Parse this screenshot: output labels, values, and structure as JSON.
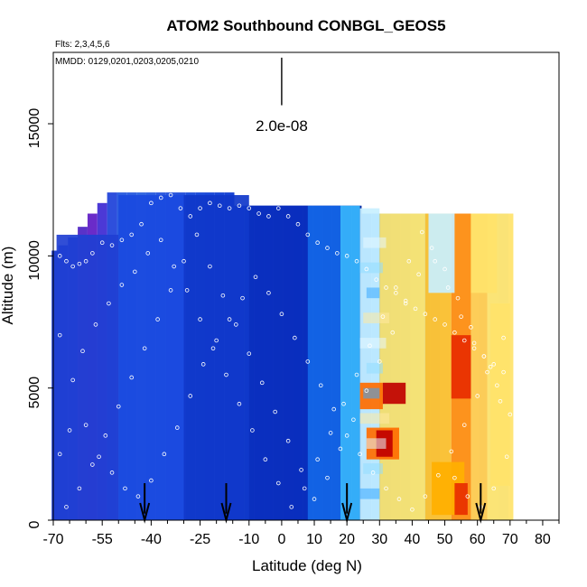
{
  "chart_data": {
    "type": "heatmap",
    "title": "ATOM2 Southbound CONBGL_GEOS5",
    "flights_text": "Flts: 2,3,4,5,6",
    "mmdd_text": "MMDD: 0129,0201,0203,0205,0210",
    "xlabel": "Latitude (deg N)",
    "ylabel": "Altitude (m)",
    "xlim": [
      -70,
      85
    ],
    "ylim": [
      0,
      17700
    ],
    "x_ticks": [
      -70,
      -55,
      -40,
      -25,
      -10,
      0,
      10,
      20,
      30,
      40,
      50,
      60,
      70,
      80
    ],
    "x_minor_ticks": [
      -65,
      -60,
      -50,
      -45,
      -35,
      -30,
      -20,
      -15,
      -5,
      5,
      15,
      25,
      35,
      45,
      55,
      65,
      75,
      85
    ],
    "y_ticks": [
      0,
      5000,
      10000,
      15000
    ],
    "scale_bar": {
      "label": "2.0e-08",
      "x": 0,
      "y_from": 15700,
      "y_to": 17500
    },
    "arrow_markers_lat": [
      -42,
      -17,
      20,
      61
    ],
    "color_scale": [
      "#0000c8",
      "#1f4fe6",
      "#3f7ff0",
      "#38b8ff",
      "#c8f0ff",
      "#ffffc0",
      "#ffe36a",
      "#ffbe28",
      "#ff8a0a",
      "#e82c00",
      "#c00000"
    ],
    "column_tops": [
      {
        "lat": -69,
        "top": 10200,
        "fill": "#1f3fd2"
      },
      {
        "lat": -67,
        "top": 10400,
        "fill": "#1f3fd2"
      },
      {
        "lat": -64,
        "top": 10700,
        "fill": "#2a44d5"
      },
      {
        "lat": -61,
        "top": 11100,
        "fill": "#5a32c8"
      },
      {
        "lat": -58,
        "top": 11600,
        "fill": "#6a2bc9"
      },
      {
        "lat": -55,
        "top": 12000,
        "fill": "#4c39d6"
      },
      {
        "lat": -52,
        "top": 12400,
        "fill": "#2e4fdc"
      },
      {
        "lat": -49,
        "top": 12400,
        "fill": "#2e5fe0"
      },
      {
        "lat": -46,
        "top": 12400,
        "fill": "#2e5fe0"
      },
      {
        "lat": -43,
        "top": 12400,
        "fill": "#3266e0"
      },
      {
        "lat": -40,
        "top": 12400,
        "fill": "#2d5ee0"
      },
      {
        "lat": -37,
        "top": 12400,
        "fill": "#2b59de"
      },
      {
        "lat": -34,
        "top": 12400,
        "fill": "#2855dd"
      },
      {
        "lat": -31,
        "top": 12400,
        "fill": "#2552dc"
      },
      {
        "lat": -28,
        "top": 12400,
        "fill": "#2150db"
      },
      {
        "lat": -25,
        "top": 12400,
        "fill": "#1d4cda"
      },
      {
        "lat": -22,
        "top": 12400,
        "fill": "#1b49d8"
      },
      {
        "lat": -19,
        "top": 12400,
        "fill": "#1946d6"
      },
      {
        "lat": -16,
        "top": 12400,
        "fill": "#1944d4"
      },
      {
        "lat": -13,
        "top": 11900,
        "fill": "#1a42d2"
      },
      {
        "lat": -10,
        "top": 11900,
        "fill": "#163ecc"
      },
      {
        "lat": -7,
        "top": 11900,
        "fill": "#133ac8"
      },
      {
        "lat": -4,
        "top": 11900,
        "fill": "#1136c4"
      },
      {
        "lat": -1,
        "top": 11900,
        "fill": "#0f31c0"
      },
      {
        "lat": 2,
        "top": 11900,
        "fill": "#0d2ebb"
      },
      {
        "lat": 5,
        "top": 11900,
        "fill": "#0b2bb7"
      },
      {
        "lat": 8,
        "top": 11900,
        "fill": "#0a28b3"
      },
      {
        "lat": 11,
        "top": 11900,
        "fill": "#0826ad"
      },
      {
        "lat": 14,
        "top": 11900,
        "fill": "#0723a7"
      },
      {
        "lat": 17,
        "top": 11900,
        "fill": "#0621a1"
      },
      {
        "lat": 20,
        "top": 11900,
        "fill": "#06239f"
      },
      {
        "lat": 23,
        "top": 11900,
        "fill": "#0727a1"
      },
      {
        "lat": 26,
        "top": 11600,
        "fill": "#1f76f0"
      },
      {
        "lat": 29,
        "top": 11600,
        "fill": "#2a8df6"
      },
      {
        "lat": 32,
        "top": 11600,
        "fill": "#38a2f8"
      },
      {
        "lat": 35,
        "top": 11600,
        "fill": "#4ab3fb"
      },
      {
        "lat": 38,
        "top": 11600,
        "fill": "#5cc3fd"
      },
      {
        "lat": 41,
        "top": 11600,
        "fill": "#76d1ff"
      },
      {
        "lat": 44,
        "top": 11600,
        "fill": "#90dcff"
      },
      {
        "lat": 47,
        "top": 11600,
        "fill": "#a8e4ff"
      },
      {
        "lat": 50,
        "top": 11600,
        "fill": "#c1ecff"
      },
      {
        "lat": 53,
        "top": 11600,
        "fill": "#d5f2ff"
      },
      {
        "lat": 56,
        "top": 11600,
        "fill": "#e4f7ff"
      },
      {
        "lat": 59,
        "top": 11600,
        "fill": "#e1f5ff"
      },
      {
        "lat": 62,
        "top": 11600,
        "fill": "#d6f1ff"
      },
      {
        "lat": 65,
        "top": 11600,
        "fill": "#c7ebff"
      },
      {
        "lat": 68,
        "top": 11600,
        "fill": "#b8e5ff"
      }
    ],
    "heat_bands": [
      {
        "x0": -69,
        "x1": -50,
        "y0": 0,
        "y1": 10800,
        "color": "#1f3fd2"
      },
      {
        "x0": -50,
        "x1": -30,
        "y0": 0,
        "y1": 12300,
        "color": "#1a4adf"
      },
      {
        "x0": -30,
        "x1": -10,
        "y0": 0,
        "y1": 12300,
        "color": "#0f37ca"
      },
      {
        "x0": -10,
        "x1": 8,
        "y0": 0,
        "y1": 11900,
        "color": "#0a2fbe"
      },
      {
        "x0": 8,
        "x1": 18,
        "y0": 0,
        "y1": 11900,
        "color": "#1367e8"
      },
      {
        "x0": 18,
        "x1": 24,
        "y0": 0,
        "y1": 11900,
        "color": "#38b8ff"
      },
      {
        "x0": 24,
        "x1": 30,
        "y0": 0,
        "y1": 11800,
        "color": "#c8f0ff"
      },
      {
        "x0": 30,
        "x1": 44,
        "y0": 0,
        "y1": 11600,
        "color": "#ffe36a"
      },
      {
        "x0": 44,
        "x1": 52,
        "y0": 0,
        "y1": 11600,
        "color": "#ffbe28"
      },
      {
        "x0": 52,
        "x1": 58,
        "y0": 0,
        "y1": 11600,
        "color": "#ff8a0a"
      },
      {
        "x0": 58,
        "x1": 63,
        "y0": 0,
        "y1": 11600,
        "color": "#ffc94a"
      },
      {
        "x0": 63,
        "x1": 71,
        "y0": 0,
        "y1": 11600,
        "color": "#ffe36a"
      },
      {
        "x0": 24,
        "x1": 31,
        "y0": 4200,
        "y1": 5200,
        "color": "#ff6d00"
      },
      {
        "x0": 31,
        "x1": 38,
        "y0": 4400,
        "y1": 5200,
        "color": "#c00000"
      },
      {
        "x0": 26,
        "x1": 36,
        "y0": 2300,
        "y1": 3500,
        "color": "#ff6d00"
      },
      {
        "x0": 29,
        "x1": 34,
        "y0": 2400,
        "y1": 3400,
        "color": "#c00000"
      },
      {
        "x0": 52,
        "x1": 58,
        "y0": 4600,
        "y1": 7000,
        "color": "#e82c00"
      },
      {
        "x0": 46,
        "x1": 56,
        "y0": 200,
        "y1": 2200,
        "color": "#ffb000"
      },
      {
        "x0": 53,
        "x1": 57,
        "y0": 200,
        "y1": 1400,
        "color": "#e82c00"
      },
      {
        "x0": 64,
        "x1": 70,
        "y0": 1300,
        "y1": 8200,
        "color": "#ffe36a"
      },
      {
        "x0": 58,
        "x1": 66,
        "y0": 8600,
        "y1": 11600,
        "color": "#ffe36a"
      },
      {
        "x0": 45,
        "x1": 53,
        "y0": 8600,
        "y1": 11600,
        "color": "#c8f0ff"
      }
    ],
    "obs_points": [
      {
        "x": -68,
        "y": 10000
      },
      {
        "x": -66,
        "y": 9800
      },
      {
        "x": -64,
        "y": 9600
      },
      {
        "x": -62,
        "y": 9700
      },
      {
        "x": -60,
        "y": 9800
      },
      {
        "x": -58,
        "y": 10100
      },
      {
        "x": -55,
        "y": 10500
      },
      {
        "x": -52,
        "y": 10400
      },
      {
        "x": -49,
        "y": 10600
      },
      {
        "x": -46,
        "y": 10800
      },
      {
        "x": -43,
        "y": 11200
      },
      {
        "x": -40,
        "y": 12000
      },
      {
        "x": -37,
        "y": 12200
      },
      {
        "x": -34,
        "y": 12300
      },
      {
        "x": -31,
        "y": 11800
      },
      {
        "x": -28,
        "y": 11500
      },
      {
        "x": -25,
        "y": 11800
      },
      {
        "x": -22,
        "y": 12000
      },
      {
        "x": -19,
        "y": 11900
      },
      {
        "x": -16,
        "y": 11800
      },
      {
        "x": -13,
        "y": 11900
      },
      {
        "x": -10,
        "y": 11800
      },
      {
        "x": -7,
        "y": 11600
      },
      {
        "x": -4,
        "y": 11500
      },
      {
        "x": -1,
        "y": 11800
      },
      {
        "x": 2,
        "y": 11500
      },
      {
        "x": 5,
        "y": 11200
      },
      {
        "x": 8,
        "y": 10800
      },
      {
        "x": 11,
        "y": 10500
      },
      {
        "x": 14,
        "y": 10300
      },
      {
        "x": 17,
        "y": 10100
      },
      {
        "x": 20,
        "y": 10000
      },
      {
        "x": 23,
        "y": 9800
      },
      {
        "x": 26,
        "y": 9500
      },
      {
        "x": 29,
        "y": 9100
      },
      {
        "x": 32,
        "y": 8800
      },
      {
        "x": 35,
        "y": 8600
      },
      {
        "x": 38,
        "y": 8300
      },
      {
        "x": 41,
        "y": 8000
      },
      {
        "x": 44,
        "y": 7800
      },
      {
        "x": 47,
        "y": 7600
      },
      {
        "x": 50,
        "y": 7400
      },
      {
        "x": 53,
        "y": 7100
      },
      {
        "x": 56,
        "y": 6800
      },
      {
        "x": 59,
        "y": 6500
      },
      {
        "x": 62,
        "y": 6200
      },
      {
        "x": 65,
        "y": 5900
      },
      {
        "x": 68,
        "y": 5600
      },
      {
        "x": -68,
        "y": 7000
      },
      {
        "x": -64,
        "y": 5300
      },
      {
        "x": -60,
        "y": 3600
      },
      {
        "x": -56,
        "y": 2400
      },
      {
        "x": -52,
        "y": 1800
      },
      {
        "x": -48,
        "y": 1200
      },
      {
        "x": -44,
        "y": 900
      },
      {
        "x": -40,
        "y": 1500
      },
      {
        "x": -36,
        "y": 2500
      },
      {
        "x": -32,
        "y": 3500
      },
      {
        "x": -28,
        "y": 4700
      },
      {
        "x": -24,
        "y": 5900
      },
      {
        "x": -20,
        "y": 6800
      },
      {
        "x": -16,
        "y": 7600
      },
      {
        "x": -12,
        "y": 8400
      },
      {
        "x": -8,
        "y": 9200
      },
      {
        "x": -4,
        "y": 8600
      },
      {
        "x": 0,
        "y": 7800
      },
      {
        "x": 4,
        "y": 6900
      },
      {
        "x": 8,
        "y": 6000
      },
      {
        "x": 12,
        "y": 5100
      },
      {
        "x": 16,
        "y": 4200
      },
      {
        "x": 20,
        "y": 3200
      },
      {
        "x": 24,
        "y": 2500
      },
      {
        "x": 28,
        "y": 1800
      },
      {
        "x": 32,
        "y": 1200
      },
      {
        "x": 36,
        "y": 800
      },
      {
        "x": 40,
        "y": 400
      },
      {
        "x": 44,
        "y": 900
      },
      {
        "x": 48,
        "y": 1700
      },
      {
        "x": 52,
        "y": 2600
      },
      {
        "x": 56,
        "y": 3600
      },
      {
        "x": 60,
        "y": 4700
      },
      {
        "x": 64,
        "y": 5800
      },
      {
        "x": 68,
        "y": 6900
      },
      {
        "x": -66,
        "y": 500
      },
      {
        "x": -62,
        "y": 1200
      },
      {
        "x": -58,
        "y": 2100
      },
      {
        "x": -54,
        "y": 3200
      },
      {
        "x": -50,
        "y": 4300
      },
      {
        "x": -46,
        "y": 5400
      },
      {
        "x": -42,
        "y": 6500
      },
      {
        "x": -38,
        "y": 7600
      },
      {
        "x": -34,
        "y": 8700
      },
      {
        "x": -30,
        "y": 9800
      },
      {
        "x": -26,
        "y": 10800
      },
      {
        "x": -22,
        "y": 9600
      },
      {
        "x": -18,
        "y": 8500
      },
      {
        "x": -14,
        "y": 7400
      },
      {
        "x": -10,
        "y": 6300
      },
      {
        "x": -6,
        "y": 5200
      },
      {
        "x": -2,
        "y": 4100
      },
      {
        "x": 2,
        "y": 3000
      },
      {
        "x": 6,
        "y": 1900
      },
      {
        "x": 10,
        "y": 800
      },
      {
        "x": 14,
        "y": 1600
      },
      {
        "x": 18,
        "y": 2700
      },
      {
        "x": 22,
        "y": 3800
      },
      {
        "x": 26,
        "y": 4900
      },
      {
        "x": 30,
        "y": 6000
      },
      {
        "x": 34,
        "y": 7100
      },
      {
        "x": 38,
        "y": 8200
      },
      {
        "x": 42,
        "y": 9300
      },
      {
        "x": 46,
        "y": 10300
      },
      {
        "x": 50,
        "y": 9500
      },
      {
        "x": 54,
        "y": 8400
      },
      {
        "x": 58,
        "y": 7300
      },
      {
        "x": 62,
        "y": 6200
      },
      {
        "x": 66,
        "y": 5100
      },
      {
        "x": 70,
        "y": 4000
      },
      {
        "x": -68,
        "y": 2500
      },
      {
        "x": -65,
        "y": 3400
      },
      {
        "x": -61,
        "y": 6400
      },
      {
        "x": -57,
        "y": 7400
      },
      {
        "x": -53,
        "y": 8200
      },
      {
        "x": -49,
        "y": 8900
      },
      {
        "x": -45,
        "y": 9400
      },
      {
        "x": -41,
        "y": 10100
      },
      {
        "x": -37,
        "y": 10600
      },
      {
        "x": -33,
        "y": 9600
      },
      {
        "x": -29,
        "y": 8700
      },
      {
        "x": -25,
        "y": 7600
      },
      {
        "x": -21,
        "y": 6500
      },
      {
        "x": -17,
        "y": 5500
      },
      {
        "x": -13,
        "y": 4400
      },
      {
        "x": -9,
        "y": 3400
      },
      {
        "x": -5,
        "y": 2300
      },
      {
        "x": -1,
        "y": 1400
      },
      {
        "x": 3,
        "y": 500
      },
      {
        "x": 7,
        "y": 1200
      },
      {
        "x": 11,
        "y": 2300
      },
      {
        "x": 15,
        "y": 3300
      },
      {
        "x": 19,
        "y": 4400
      },
      {
        "x": 23,
        "y": 5500
      },
      {
        "x": 27,
        "y": 6600
      },
      {
        "x": 31,
        "y": 7700
      },
      {
        "x": 35,
        "y": 8800
      },
      {
        "x": 39,
        "y": 9800
      },
      {
        "x": 43,
        "y": 10900
      },
      {
        "x": 47,
        "y": 9800
      },
      {
        "x": 51,
        "y": 8800
      },
      {
        "x": 55,
        "y": 7700
      },
      {
        "x": 59,
        "y": 6700
      },
      {
        "x": 63,
        "y": 5600
      },
      {
        "x": 67,
        "y": 4500
      },
      {
        "x": 69,
        "y": 2400
      },
      {
        "x": 65,
        "y": 1200
      },
      {
        "x": 61,
        "y": 500
      },
      {
        "x": 57,
        "y": 900
      },
      {
        "x": 53,
        "y": 1600
      }
    ]
  }
}
